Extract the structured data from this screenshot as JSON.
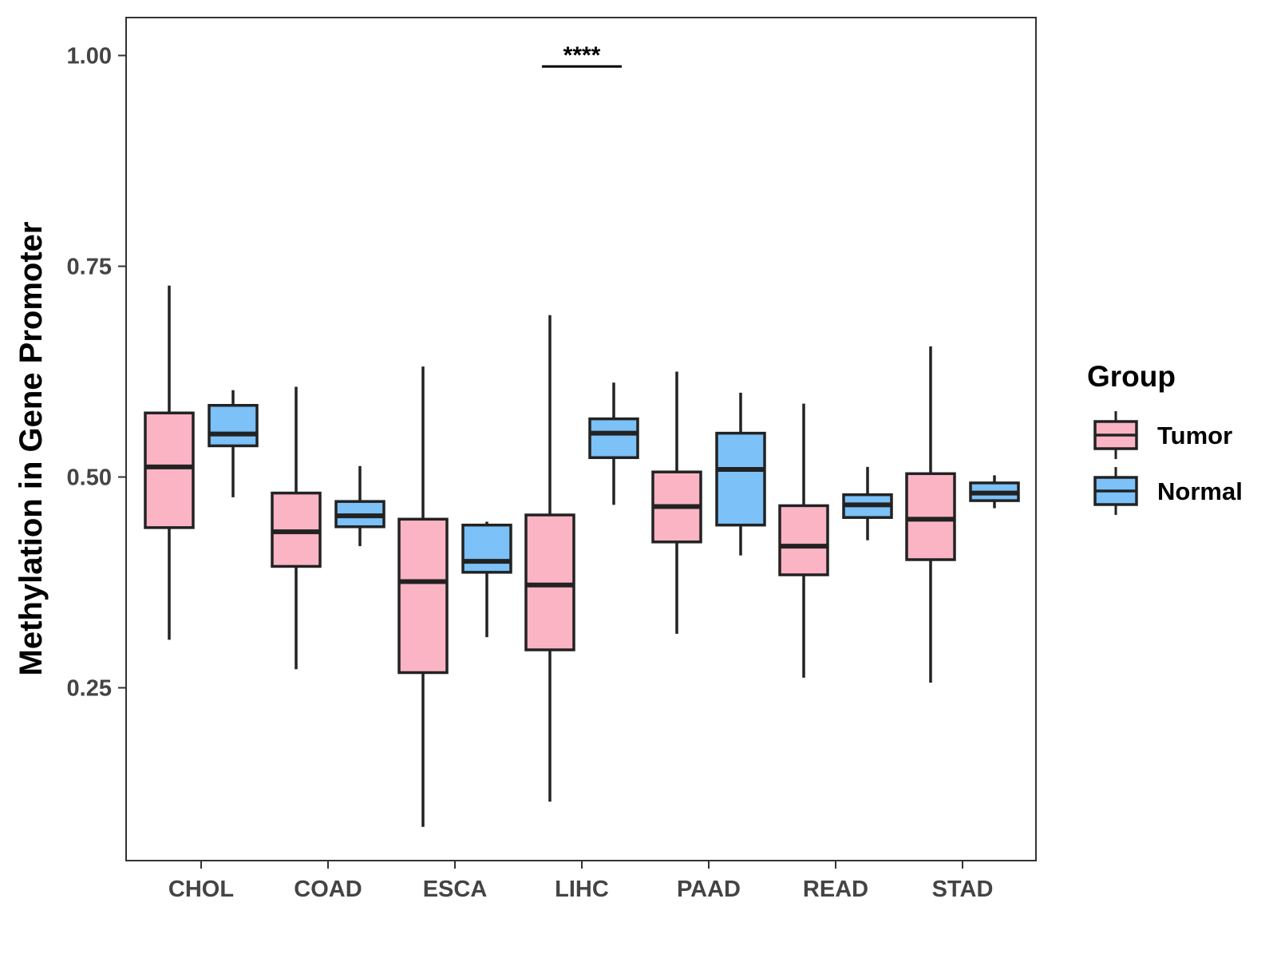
{
  "chart_data": {
    "type": "boxplot",
    "title": "",
    "xlabel": "",
    "ylabel": "Methylation in Gene Promoter",
    "ylim": [
      0.045,
      1.045
    ],
    "yticks": [
      0.25,
      0.5,
      0.75,
      1.0
    ],
    "ytick_labels": [
      "0.25",
      "0.50",
      "0.75",
      "1.00"
    ],
    "grid": false,
    "categories": [
      "CHOL",
      "COAD",
      "ESCA",
      "LIHC",
      "PAAD",
      "READ",
      "STAD"
    ],
    "legend": {
      "title": "Group",
      "position": "right",
      "entries": [
        {
          "name": "Tumor",
          "color": "#fbb4c4"
        },
        {
          "name": "Normal",
          "color": "#7cc1f7"
        }
      ]
    },
    "series": [
      {
        "name": "Tumor",
        "color": "#fbb4c4",
        "boxes": [
          {
            "category": "CHOL",
            "min": 0.307,
            "q1": 0.44,
            "median": 0.512,
            "q3": 0.576,
            "max": 0.727
          },
          {
            "category": "COAD",
            "min": 0.272,
            "q1": 0.394,
            "median": 0.435,
            "q3": 0.481,
            "max": 0.607
          },
          {
            "category": "ESCA",
            "min": 0.085,
            "q1": 0.268,
            "median": 0.376,
            "q3": 0.45,
            "max": 0.631
          },
          {
            "category": "LIHC",
            "min": 0.115,
            "q1": 0.295,
            "median": 0.372,
            "q3": 0.455,
            "max": 0.692
          },
          {
            "category": "PAAD",
            "min": 0.314,
            "q1": 0.423,
            "median": 0.465,
            "q3": 0.506,
            "max": 0.625
          },
          {
            "category": "READ",
            "min": 0.262,
            "q1": 0.384,
            "median": 0.418,
            "q3": 0.466,
            "max": 0.587
          },
          {
            "category": "STAD",
            "min": 0.256,
            "q1": 0.402,
            "median": 0.45,
            "q3": 0.504,
            "max": 0.655
          }
        ]
      },
      {
        "name": "Normal",
        "color": "#7cc1f7",
        "boxes": [
          {
            "category": "CHOL",
            "min": 0.476,
            "q1": 0.537,
            "median": 0.551,
            "q3": 0.585,
            "max": 0.603
          },
          {
            "category": "COAD",
            "min": 0.418,
            "q1": 0.441,
            "median": 0.454,
            "q3": 0.471,
            "max": 0.513
          },
          {
            "category": "ESCA",
            "min": 0.31,
            "q1": 0.387,
            "median": 0.4,
            "q3": 0.443,
            "max": 0.447
          },
          {
            "category": "LIHC",
            "min": 0.467,
            "q1": 0.523,
            "median": 0.552,
            "q3": 0.569,
            "max": 0.612
          },
          {
            "category": "PAAD",
            "min": 0.407,
            "q1": 0.443,
            "median": 0.509,
            "q3": 0.552,
            "max": 0.6
          },
          {
            "category": "READ",
            "min": 0.425,
            "q1": 0.452,
            "median": 0.467,
            "q3": 0.479,
            "max": 0.512
          },
          {
            "category": "STAD",
            "min": 0.463,
            "q1": 0.472,
            "median": 0.481,
            "q3": 0.493,
            "max": 0.502
          }
        ]
      }
    ],
    "annotations": [
      {
        "category": "LIHC",
        "text": "****",
        "y": 0.987
      }
    ]
  }
}
